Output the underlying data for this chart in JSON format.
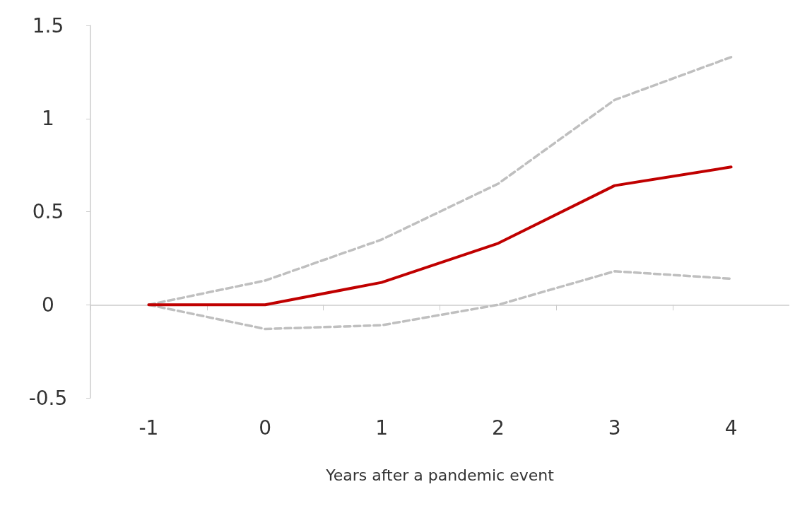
{
  "chart_data": {
    "type": "line",
    "xlabel": "Years after a pandemic event",
    "categories": [
      "-1",
      "0",
      "1",
      "2",
      "3",
      "4"
    ],
    "series": [
      {
        "color": "#bfbfbf",
        "line_style": "dashed",
        "values": [
          0,
          0.13,
          0.35,
          0.65,
          1.1,
          1.33
        ]
      },
      {
        "color": "#bfbfbf",
        "line_style": "dashed",
        "values": [
          0,
          -0.13,
          -0.11,
          0,
          0.18,
          0.14
        ]
      },
      {
        "color": "#c00000",
        "line_style": "solid",
        "values": [
          0,
          0,
          0.12,
          0.33,
          0.64,
          0.74
        ]
      }
    ],
    "ylim": [
      -0.5,
      1.5
    ],
    "yticks": [
      -0.5,
      0,
      0.5,
      1,
      1.5
    ],
    "marker": "none"
  }
}
